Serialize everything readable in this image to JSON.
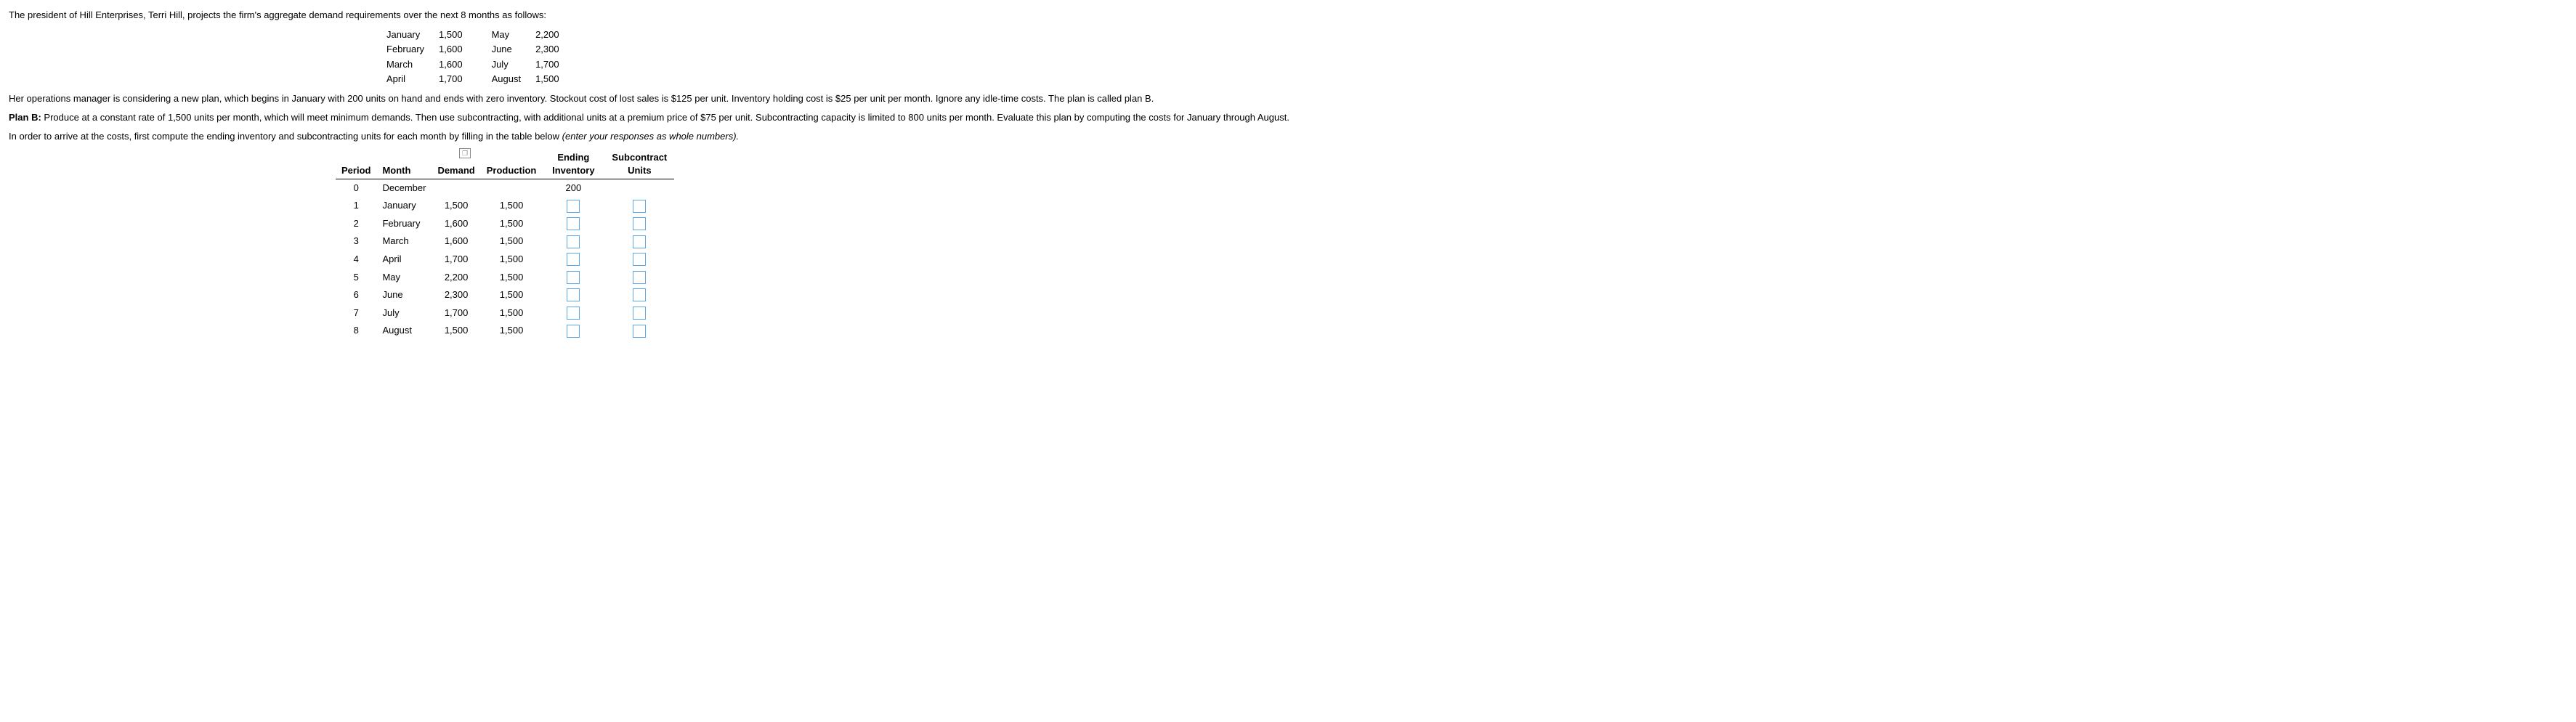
{
  "intro": "The president of Hill Enterprises, Terri Hill, projects the firm's aggregate demand requirements over the next 8 months as follows:",
  "demand_months": {
    "r1c1": "January",
    "r1v1": "1,500",
    "r1c2": "May",
    "r1v2": "2,200",
    "r2c1": "February",
    "r2v1": "1,600",
    "r2c2": "June",
    "r2v2": "2,300",
    "r3c1": "March",
    "r3v1": "1,600",
    "r3c2": "July",
    "r3v2": "1,700",
    "r4c1": "April",
    "r4v1": "1,700",
    "r4c2": "August",
    "r4v2": "1,500"
  },
  "para2": "Her operations manager is considering a new plan, which begins in January with 200 units on hand and ends with zero inventory. Stockout cost of lost sales is $125 per unit. Inventory holding cost is $25 per unit per month. Ignore any idle-time costs. The plan is called plan B.",
  "planB_label": "Plan B:",
  "planB_text": " Produce at a constant rate of 1,500 units per month, which will meet minimum demands. Then use subcontracting, with additional units at a premium price of $75 per unit. Subcontracting capacity is limited to 800 units per month. Evaluate this plan by computing the costs for January through August.",
  "para4a": "In order to arrive at the costs, first compute the ending inventory and subcontracting units for each month by filling in the table below ",
  "para4b": "(enter your responses as whole numbers).",
  "headers": {
    "period": "Period",
    "month": "Month",
    "demand": "Demand",
    "production": "Production",
    "ending_inv": "Ending Inventory",
    "subcontract": "Subcontract Units"
  },
  "rows": [
    {
      "period": "0",
      "month": "December",
      "demand": "",
      "production": "",
      "ending": "200",
      "sub": "",
      "input": false
    },
    {
      "period": "1",
      "month": "January",
      "demand": "1,500",
      "production": "1,500",
      "ending": "",
      "sub": "",
      "input": true
    },
    {
      "period": "2",
      "month": "February",
      "demand": "1,600",
      "production": "1,500",
      "ending": "",
      "sub": "",
      "input": true
    },
    {
      "period": "3",
      "month": "March",
      "demand": "1,600",
      "production": "1,500",
      "ending": "",
      "sub": "",
      "input": true
    },
    {
      "period": "4",
      "month": "April",
      "demand": "1,700",
      "production": "1,500",
      "ending": "",
      "sub": "",
      "input": true
    },
    {
      "period": "5",
      "month": "May",
      "demand": "2,200",
      "production": "1,500",
      "ending": "",
      "sub": "",
      "input": true
    },
    {
      "period": "6",
      "month": "June",
      "demand": "2,300",
      "production": "1,500",
      "ending": "",
      "sub": "",
      "input": true
    },
    {
      "period": "7",
      "month": "July",
      "demand": "1,700",
      "production": "1,500",
      "ending": "",
      "sub": "",
      "input": true
    },
    {
      "period": "8",
      "month": "August",
      "demand": "1,500",
      "production": "1,500",
      "ending": "",
      "sub": "",
      "input": true
    }
  ]
}
